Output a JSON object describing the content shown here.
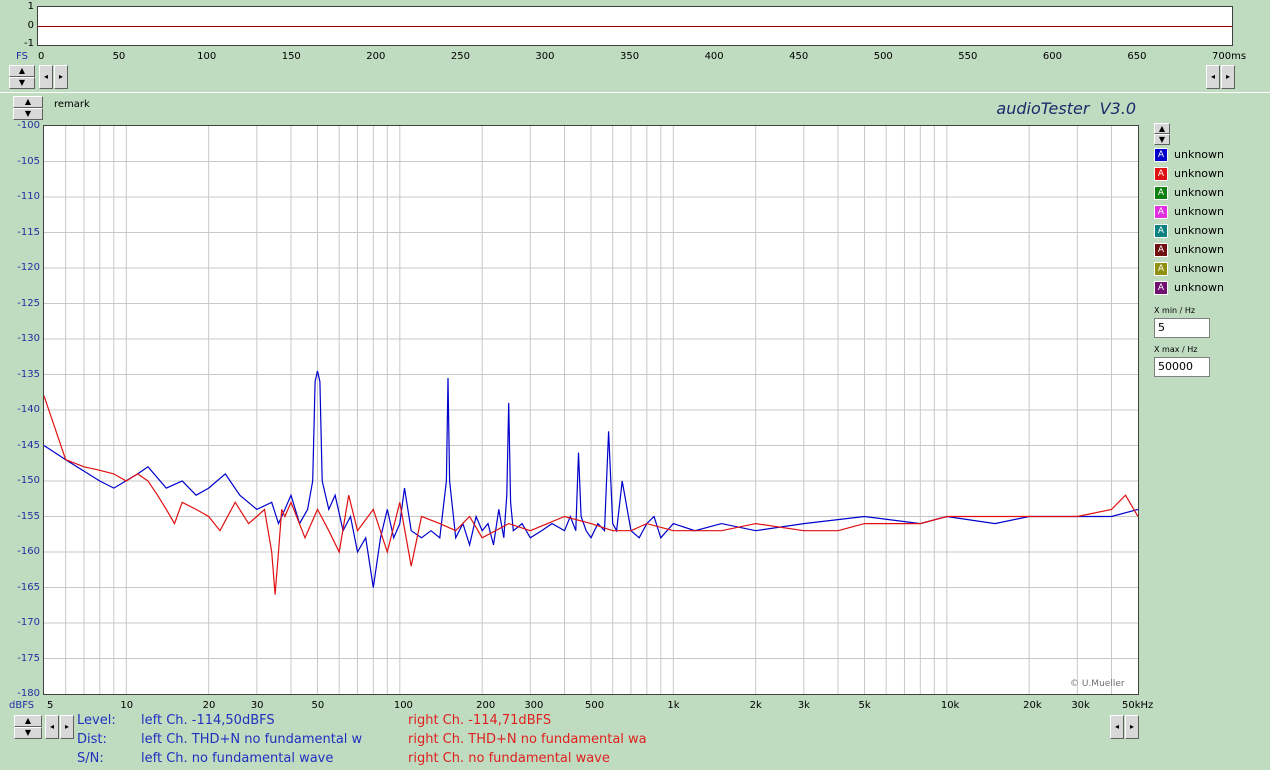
{
  "brand": "audioTester  V3.0",
  "copyright": "© U.Mueller",
  "remark_label": "remark",
  "time_panel": {
    "y_ticks": [
      "1",
      "0",
      "-1"
    ],
    "x_ticks": [
      "0",
      "50",
      "100",
      "150",
      "200",
      "250",
      "300",
      "350",
      "400",
      "450",
      "500",
      "550",
      "600",
      "650",
      "700ms"
    ],
    "fs_label": "FS"
  },
  "legend": [
    {
      "label": "unknown",
      "color": "#0000cc"
    },
    {
      "label": "unknown",
      "color": "#e01010"
    },
    {
      "label": "unknown",
      "color": "#108010"
    },
    {
      "label": "unknown",
      "color": "#e030e0"
    },
    {
      "label": "unknown",
      "color": "#108080"
    },
    {
      "label": "unknown",
      "color": "#701010"
    },
    {
      "label": "unknown",
      "color": "#909010"
    },
    {
      "label": "unknown",
      "color": "#701070"
    }
  ],
  "legend_swatch_letter": "A",
  "xmin": {
    "label": "X min / Hz",
    "value": "5"
  },
  "xmax": {
    "label": "X max / Hz",
    "value": "50000"
  },
  "status": {
    "level_label": "Level:",
    "dist_label": "Dist:",
    "sn_label": "S/N:",
    "left_level": "left Ch. -114,50dBFS",
    "left_dist": "left Ch. THD+N  no fundamental w",
    "left_sn": "left Ch.  no fundamental wave",
    "right_level": "right Ch. -114,71dBFS",
    "right_dist": "right Ch. THD+N  no fundamental wa",
    "right_sn": "right Ch.  no fundamental wave"
  },
  "chart_data": {
    "type": "line",
    "xscale": "log",
    "xlim": [
      5,
      50000
    ],
    "ylim": [
      -180,
      -100
    ],
    "ylabel": "dBFS",
    "xunit": "kHz",
    "grid": true,
    "x_tick_labels": [
      {
        "v": 5,
        "t": "5"
      },
      {
        "v": 10,
        "t": "10"
      },
      {
        "v": 20,
        "t": "20"
      },
      {
        "v": 30,
        "t": "30"
      },
      {
        "v": 50,
        "t": "50"
      },
      {
        "v": 100,
        "t": "100"
      },
      {
        "v": 200,
        "t": "200"
      },
      {
        "v": 300,
        "t": "300"
      },
      {
        "v": 500,
        "t": "500"
      },
      {
        "v": 1000,
        "t": "1k"
      },
      {
        "v": 2000,
        "t": "2k"
      },
      {
        "v": 3000,
        "t": "3k"
      },
      {
        "v": 5000,
        "t": "5k"
      },
      {
        "v": 10000,
        "t": "10k"
      },
      {
        "v": 20000,
        "t": "20k"
      },
      {
        "v": 30000,
        "t": "30k"
      },
      {
        "v": 50000,
        "t": "50kHz"
      }
    ],
    "y_tick_labels": [
      "-100",
      "-105",
      "-110",
      "-115",
      "-120",
      "-125",
      "-130",
      "-135",
      "-140",
      "-145",
      "-150",
      "-155",
      "-160",
      "-165",
      "-170",
      "-175",
      "-180"
    ],
    "series": [
      {
        "color": "#0000cc",
        "x": [
          5,
          6,
          8,
          9,
          11,
          12,
          14,
          16,
          18,
          20,
          23,
          26,
          30,
          34,
          36,
          38,
          40,
          43,
          46,
          48,
          49,
          50,
          51,
          52,
          55,
          58,
          62,
          66,
          70,
          75,
          80,
          85,
          90,
          95,
          100,
          104,
          110,
          120,
          130,
          140,
          148,
          150,
          152,
          160,
          170,
          180,
          190,
          200,
          210,
          220,
          230,
          240,
          246,
          250,
          254,
          260,
          280,
          300,
          330,
          360,
          400,
          420,
          440,
          450,
          460,
          480,
          500,
          530,
          560,
          580,
          600,
          620,
          650,
          700,
          750,
          800,
          850,
          900,
          1000,
          1200,
          1500,
          2000,
          3000,
          5000,
          8000,
          10000,
          15000,
          20000,
          30000,
          40000,
          50000
        ],
        "y": [
          -145,
          -147,
          -150,
          -151,
          -149,
          -148,
          -151,
          -150,
          -152,
          -151,
          -149,
          -152,
          -154,
          -153,
          -156,
          -154,
          -152,
          -156,
          -154,
          -150,
          -136,
          -134.5,
          -136,
          -150,
          -154,
          -152,
          -157,
          -155,
          -160,
          -158,
          -165,
          -158,
          -154,
          -158,
          -156,
          -151,
          -157,
          -158,
          -157,
          -158,
          -150,
          -135.5,
          -150,
          -158,
          -156,
          -159,
          -155,
          -157,
          -156,
          -159,
          -154,
          -158,
          -152,
          -139,
          -153,
          -157,
          -156,
          -158,
          -157,
          -156,
          -157,
          -155,
          -157,
          -146,
          -155,
          -157,
          -158,
          -156,
          -157,
          -143,
          -156,
          -157,
          -150,
          -157,
          -158,
          -156,
          -155,
          -158,
          -156,
          -157,
          -156,
          -157,
          -156,
          -155,
          -156,
          -155,
          -156,
          -155,
          -155,
          -155,
          -154
        ]
      },
      {
        "color": "#e01010",
        "x": [
          5,
          6,
          7,
          8,
          9,
          10,
          11,
          12,
          13,
          14,
          15,
          16,
          18,
          20,
          22,
          25,
          28,
          30,
          32,
          34,
          35,
          36,
          37,
          38,
          40,
          45,
          50,
          55,
          60,
          65,
          70,
          80,
          90,
          100,
          110,
          120,
          140,
          160,
          180,
          200,
          250,
          300,
          400,
          500,
          600,
          700,
          800,
          1000,
          1500,
          2000,
          3000,
          4000,
          5000,
          8000,
          10000,
          20000,
          30000,
          40000,
          45000,
          50000
        ],
        "y": [
          -138,
          -147,
          -148,
          -148.5,
          -149,
          -150,
          -149,
          -150,
          -152,
          -154,
          -156,
          -153,
          -154,
          -155,
          -157,
          -153,
          -156,
          -155,
          -154,
          -160,
          -166,
          -160,
          -154,
          -155,
          -153,
          -158,
          -154,
          -157,
          -160,
          -152,
          -157,
          -154,
          -160,
          -153,
          -162,
          -155,
          -156,
          -157,
          -155,
          -158,
          -156,
          -157,
          -155,
          -156,
          -157,
          -157,
          -156,
          -157,
          -157,
          -156,
          -157,
          -157,
          -156,
          -156,
          -155,
          -155,
          -155,
          -154,
          -152,
          -155
        ]
      }
    ]
  }
}
